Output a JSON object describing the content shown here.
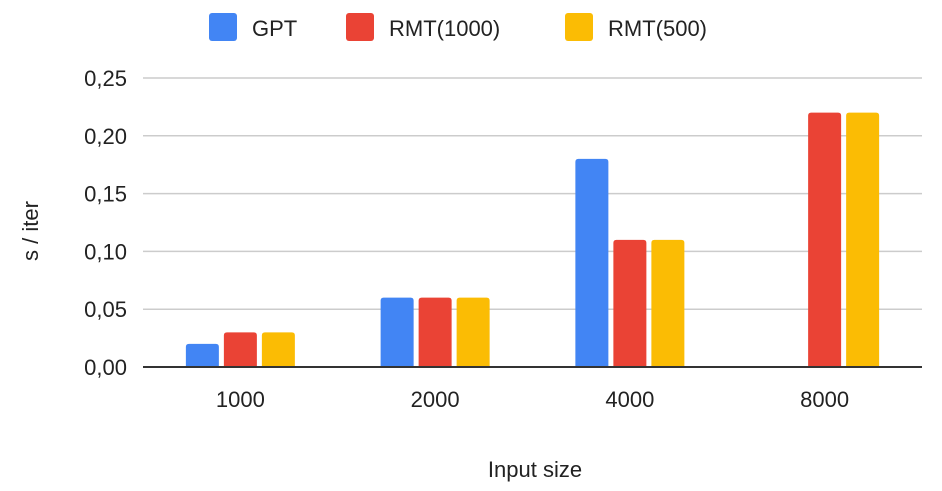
{
  "chart_data": {
    "type": "bar",
    "categories": [
      "1000",
      "2000",
      "4000",
      "8000"
    ],
    "series": [
      {
        "name": "GPT",
        "values": [
          0.02,
          0.06,
          0.18,
          null
        ],
        "color": "#4285F4"
      },
      {
        "name": "RMT(1000)",
        "values": [
          0.03,
          0.06,
          0.11,
          0.22
        ],
        "color": "#EA4335"
      },
      {
        "name": "RMT(500)",
        "values": [
          0.03,
          0.06,
          0.11,
          0.22
        ],
        "color": "#FBBC04"
      }
    ],
    "xlabel": "Input size",
    "ylabel": "s / iter",
    "ylim": [
      0,
      0.25
    ],
    "yticks": [
      "0,00",
      "0,05",
      "0,10",
      "0,15",
      "0,20",
      "0,25"
    ],
    "grid": true,
    "legend_position": "top"
  }
}
